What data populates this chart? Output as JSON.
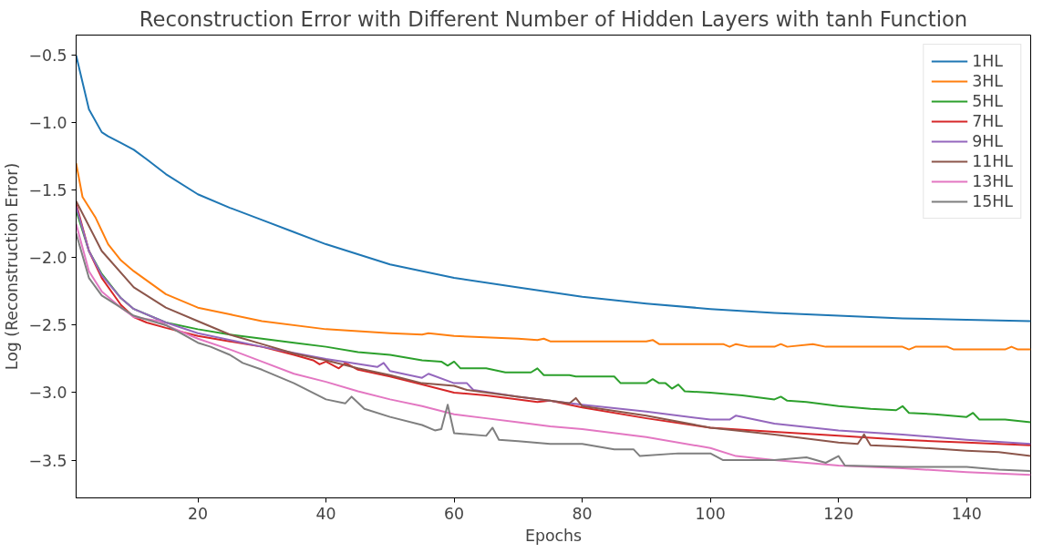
{
  "chart_data": {
    "type": "line",
    "title": "Reconstruction Error with Different Number of Hidden Layers with tanh Function",
    "xlabel": "Epochs",
    "ylabel": "Log (Reconstruction Error)",
    "xlim": [
      1,
      150
    ],
    "ylim": [
      -3.78,
      -0.35
    ],
    "xticks": [
      20,
      40,
      60,
      80,
      100,
      120,
      140
    ],
    "yticks": [
      {
        "value": -3.5,
        "label": "−3.5"
      },
      {
        "value": -3.0,
        "label": "−3.0"
      },
      {
        "value": -2.5,
        "label": "−2.5"
      },
      {
        "value": -2.0,
        "label": "−2.0"
      },
      {
        "value": -1.5,
        "label": "−1.5"
      },
      {
        "value": -1.0,
        "label": "−1.0"
      },
      {
        "value": -0.5,
        "label": "−0.5"
      }
    ],
    "grid": false,
    "legend": "top right",
    "line_style": "solid",
    "series": [
      {
        "name": "1HL",
        "color": "#1f77b4",
        "x": [
          1,
          3,
          5,
          6,
          8,
          10,
          12,
          15,
          20,
          25,
          30,
          35,
          40,
          50,
          60,
          70,
          80,
          90,
          100,
          110,
          120,
          130,
          140,
          150
        ],
        "values": [
          -0.5,
          -0.9,
          -1.07,
          -1.1,
          -1.15,
          -1.2,
          -1.27,
          -1.38,
          -1.53,
          -1.63,
          -1.72,
          -1.81,
          -1.9,
          -2.05,
          -2.15,
          -2.22,
          -2.29,
          -2.34,
          -2.38,
          -2.41,
          -2.43,
          -2.45,
          -2.46,
          -2.47
        ]
      },
      {
        "name": "3HL",
        "color": "#ff7f0e",
        "x": [
          1,
          2,
          4,
          6,
          8,
          10,
          15,
          20,
          25,
          30,
          40,
          50,
          55,
          56,
          60,
          70,
          73,
          74,
          75,
          90,
          91,
          92,
          102,
          103,
          104,
          106,
          110,
          111,
          112,
          116,
          118,
          130,
          131,
          132,
          137,
          138,
          146,
          147,
          148,
          150
        ],
        "values": [
          -1.3,
          -1.55,
          -1.7,
          -1.9,
          -2.02,
          -2.1,
          -2.27,
          -2.37,
          -2.42,
          -2.47,
          -2.53,
          -2.56,
          -2.57,
          -2.56,
          -2.58,
          -2.6,
          -2.61,
          -2.6,
          -2.62,
          -2.62,
          -2.61,
          -2.64,
          -2.64,
          -2.66,
          -2.64,
          -2.66,
          -2.66,
          -2.64,
          -2.66,
          -2.64,
          -2.66,
          -2.66,
          -2.68,
          -2.66,
          -2.66,
          -2.68,
          -2.68,
          -2.66,
          -2.68,
          -2.68
        ]
      },
      {
        "name": "5HL",
        "color": "#2ca02c",
        "x": [
          1,
          3,
          5,
          8,
          10,
          15,
          20,
          25,
          30,
          35,
          40,
          45,
          50,
          55,
          58,
          59,
          60,
          61,
          65,
          68,
          72,
          73,
          74,
          78,
          79,
          85,
          86,
          90,
          91,
          92,
          93,
          94,
          95,
          96,
          100,
          105,
          110,
          111,
          112,
          115,
          120,
          125,
          129,
          130,
          131,
          135,
          140,
          141,
          142,
          146,
          150
        ],
        "values": [
          -1.65,
          -1.95,
          -2.12,
          -2.3,
          -2.38,
          -2.48,
          -2.53,
          -2.57,
          -2.6,
          -2.63,
          -2.66,
          -2.7,
          -2.72,
          -2.76,
          -2.77,
          -2.8,
          -2.77,
          -2.82,
          -2.82,
          -2.85,
          -2.85,
          -2.82,
          -2.87,
          -2.87,
          -2.88,
          -2.88,
          -2.93,
          -2.93,
          -2.9,
          -2.93,
          -2.93,
          -2.97,
          -2.94,
          -2.99,
          -3.0,
          -3.02,
          -3.05,
          -3.03,
          -3.06,
          -3.07,
          -3.1,
          -3.12,
          -3.13,
          -3.1,
          -3.15,
          -3.16,
          -3.18,
          -3.15,
          -3.2,
          -3.2,
          -3.22
        ]
      },
      {
        "name": "7HL",
        "color": "#d62728",
        "x": [
          1,
          3,
          5,
          8,
          10,
          12,
          15,
          20,
          25,
          30,
          35,
          38,
          39,
          40,
          42,
          43,
          45,
          50,
          55,
          60,
          65,
          70,
          73,
          75,
          80,
          90,
          100,
          110,
          120,
          130,
          140,
          150
        ],
        "values": [
          -1.6,
          -1.95,
          -2.15,
          -2.35,
          -2.44,
          -2.48,
          -2.52,
          -2.58,
          -2.62,
          -2.66,
          -2.72,
          -2.76,
          -2.79,
          -2.77,
          -2.82,
          -2.78,
          -2.83,
          -2.88,
          -2.94,
          -3.0,
          -3.02,
          -3.05,
          -3.07,
          -3.06,
          -3.11,
          -3.19,
          -3.26,
          -3.29,
          -3.32,
          -3.35,
          -3.37,
          -3.39
        ]
      },
      {
        "name": "9HL",
        "color": "#9467bd",
        "x": [
          1,
          3,
          5,
          8,
          10,
          15,
          20,
          30,
          40,
          48,
          49,
          50,
          55,
          56,
          60,
          62,
          63,
          70,
          80,
          90,
          100,
          103,
          104,
          110,
          120,
          130,
          140,
          150
        ],
        "values": [
          -1.62,
          -1.95,
          -2.13,
          -2.3,
          -2.38,
          -2.48,
          -2.56,
          -2.66,
          -2.75,
          -2.81,
          -2.78,
          -2.84,
          -2.89,
          -2.86,
          -2.93,
          -2.93,
          -2.98,
          -3.03,
          -3.09,
          -3.14,
          -3.2,
          -3.2,
          -3.17,
          -3.23,
          -3.28,
          -3.31,
          -3.35,
          -3.38
        ]
      },
      {
        "name": "11HL",
        "color": "#8c564b",
        "x": [
          1,
          5,
          10,
          15,
          20,
          25,
          30,
          35,
          40,
          45,
          50,
          55,
          60,
          62,
          70,
          75,
          78,
          79,
          80,
          90,
          100,
          110,
          120,
          123,
          124,
          125,
          130,
          140,
          145,
          150
        ],
        "values": [
          -1.58,
          -1.95,
          -2.22,
          -2.37,
          -2.47,
          -2.57,
          -2.64,
          -2.71,
          -2.76,
          -2.82,
          -2.87,
          -2.93,
          -2.95,
          -2.98,
          -3.03,
          -3.06,
          -3.08,
          -3.04,
          -3.1,
          -3.17,
          -3.26,
          -3.31,
          -3.37,
          -3.38,
          -3.31,
          -3.39,
          -3.4,
          -3.43,
          -3.44,
          -3.47
        ]
      },
      {
        "name": "13HL",
        "color": "#e377c2",
        "x": [
          1,
          3,
          5,
          8,
          10,
          14,
          15,
          20,
          25,
          30,
          35,
          40,
          45,
          50,
          55,
          60,
          65,
          70,
          75,
          80,
          90,
          100,
          104,
          110,
          120,
          130,
          140,
          150
        ],
        "values": [
          -1.75,
          -2.1,
          -2.25,
          -2.37,
          -2.44,
          -2.47,
          -2.5,
          -2.6,
          -2.68,
          -2.77,
          -2.86,
          -2.92,
          -2.99,
          -3.05,
          -3.1,
          -3.16,
          -3.19,
          -3.22,
          -3.25,
          -3.27,
          -3.33,
          -3.41,
          -3.47,
          -3.5,
          -3.54,
          -3.56,
          -3.59,
          -3.61
        ]
      },
      {
        "name": "15HL",
        "color": "#7f7f7f",
        "x": [
          1,
          3,
          5,
          8,
          10,
          15,
          17,
          20,
          22,
          25,
          27,
          30,
          35,
          40,
          43,
          44,
          46,
          50,
          55,
          57,
          58,
          59,
          60,
          65,
          66,
          67,
          70,
          75,
          80,
          85,
          88,
          89,
          95,
          100,
          102,
          110,
          115,
          118,
          120,
          121,
          130,
          140,
          145,
          150
        ],
        "values": [
          -1.82,
          -2.15,
          -2.28,
          -2.37,
          -2.43,
          -2.5,
          -2.55,
          -2.63,
          -2.66,
          -2.72,
          -2.78,
          -2.83,
          -2.93,
          -3.05,
          -3.08,
          -3.03,
          -3.12,
          -3.18,
          -3.24,
          -3.28,
          -3.27,
          -3.09,
          -3.3,
          -3.32,
          -3.26,
          -3.35,
          -3.36,
          -3.38,
          -3.38,
          -3.42,
          -3.42,
          -3.47,
          -3.45,
          -3.45,
          -3.5,
          -3.5,
          -3.48,
          -3.52,
          -3.47,
          -3.54,
          -3.55,
          -3.55,
          -3.57,
          -3.58
        ]
      }
    ]
  }
}
